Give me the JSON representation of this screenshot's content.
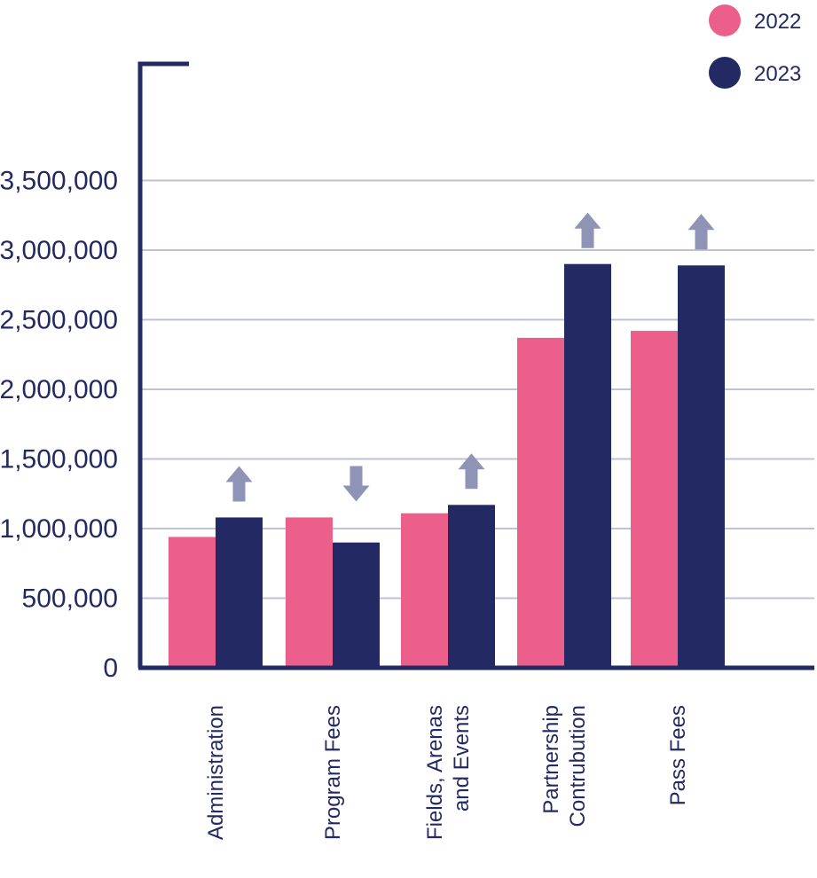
{
  "chart_data": {
    "type": "bar",
    "title": "",
    "xlabel": "",
    "ylabel": "",
    "categories": [
      [
        "Administration"
      ],
      [
        "Program Fees"
      ],
      [
        "Fields, Arenas",
        "and Events"
      ],
      [
        "Partnership",
        "Contrubution"
      ],
      [
        "Pass Fees"
      ]
    ],
    "series": [
      {
        "name": "2022",
        "color": "#ec5f8a",
        "values": [
          940000,
          1080000,
          1110000,
          2370000,
          2420000
        ]
      },
      {
        "name": "2023",
        "color": "#232a63",
        "values": [
          1080000,
          900000,
          1170000,
          2900000,
          2890000
        ]
      }
    ],
    "change_arrows": [
      "up",
      "down",
      "up",
      "up",
      "up"
    ],
    "arrow_color": "#8f93b5",
    "yticks": [
      0,
      500000,
      1000000,
      1500000,
      2000000,
      2500000,
      3000000,
      3500000
    ],
    "ytick_labels": [
      "0",
      "500,000",
      "1,000,000",
      "1,500,000",
      "2,000,000",
      "2,500,000",
      "3,000,000",
      "3,500,000"
    ],
    "ylim": [
      0,
      3500000
    ],
    "grid": true,
    "legend_position": "top-right"
  }
}
